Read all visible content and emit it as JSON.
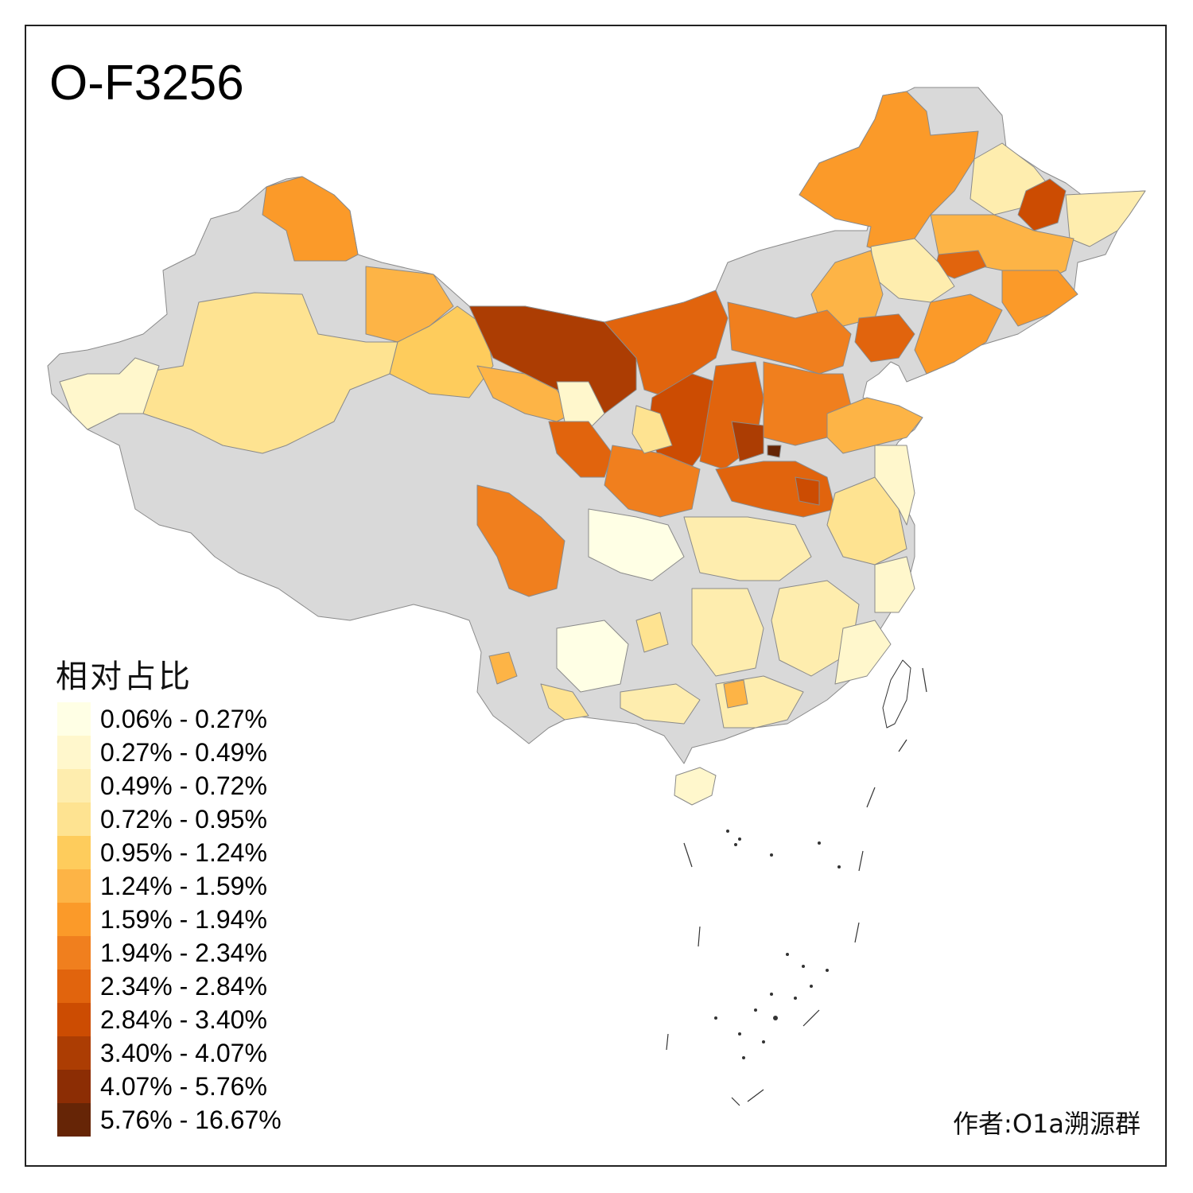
{
  "title": "O-F3256",
  "legend": {
    "title": "相对占比",
    "classes": [
      {
        "label": "0.06% - 0.27%",
        "color": "#FFFFE5"
      },
      {
        "label": "0.27% - 0.49%",
        "color": "#FFF7CC"
      },
      {
        "label": "0.49% - 0.72%",
        "color": "#FEEDAE"
      },
      {
        "label": "0.72% - 0.95%",
        "color": "#FEE391"
      },
      {
        "label": "0.95% - 1.24%",
        "color": "#FECC5C"
      },
      {
        "label": "1.24% - 1.59%",
        "color": "#FDB446"
      },
      {
        "label": "1.59% - 1.94%",
        "color": "#FB9A29"
      },
      {
        "label": "1.94% - 2.34%",
        "color": "#F07F1E"
      },
      {
        "label": "2.34% - 2.84%",
        "color": "#E1640D"
      },
      {
        "label": "2.84% - 3.40%",
        "color": "#CC4C02"
      },
      {
        "label": "3.40% - 4.07%",
        "color": "#AC3D03"
      },
      {
        "label": "4.07% - 5.76%",
        "color": "#8C2D04"
      },
      {
        "label": "5.76% - 16.67%",
        "color": "#662506"
      }
    ]
  },
  "no_data_color": "#D9D9D9",
  "credit": "作者:O1a溯源群"
}
